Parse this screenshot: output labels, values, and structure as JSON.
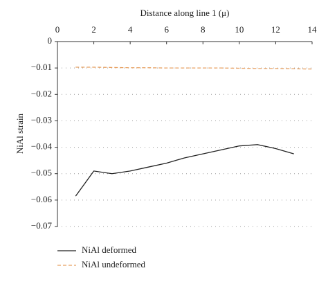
{
  "chart_data": {
    "type": "line",
    "x_label": "Distance along line 1 (μ)",
    "y_label": "NiAl strain",
    "xlim": [
      0,
      14
    ],
    "xticks": [
      0,
      2,
      4,
      6,
      8,
      10,
      12,
      14
    ],
    "ylim": [
      -0.07,
      0
    ],
    "yticks": [
      0,
      {
        "value": -0.01,
        "label": "−0.01"
      },
      {
        "value": -0.02,
        "label": "−0.02"
      },
      {
        "value": -0.03,
        "label": "−0.03"
      },
      {
        "value": -0.04,
        "label": "−0.04"
      },
      {
        "value": -0.05,
        "label": "−0.05"
      },
      {
        "value": -0.06,
        "label": "−0.06"
      },
      {
        "value": -0.07,
        "label": "−0.07"
      }
    ],
    "grid": true,
    "series": [
      {
        "name": "NiAl deformed",
        "color": "#222222",
        "style": "solid",
        "x": [
          1,
          2,
          3,
          4,
          5,
          6,
          7,
          8,
          9,
          10,
          11,
          12,
          13
        ],
        "values": [
          -0.0585,
          -0.049,
          -0.05,
          -0.049,
          -0.0475,
          -0.046,
          -0.044,
          -0.0425,
          -0.041,
          -0.0395,
          -0.039,
          -0.0405,
          -0.0425
        ]
      },
      {
        "name": "NiAl undeformed",
        "color": "#e8a060",
        "style": "dashed",
        "x": [
          1,
          2,
          3,
          4,
          5,
          6,
          7,
          8,
          9,
          10,
          11,
          12,
          13,
          14
        ],
        "values": [
          -0.0097,
          -0.0097,
          -0.0098,
          -0.0099,
          -0.0099,
          -0.01,
          -0.01,
          -0.01,
          -0.01,
          -0.0101,
          -0.0102,
          -0.0102,
          -0.0103,
          -0.0104
        ]
      }
    ]
  }
}
